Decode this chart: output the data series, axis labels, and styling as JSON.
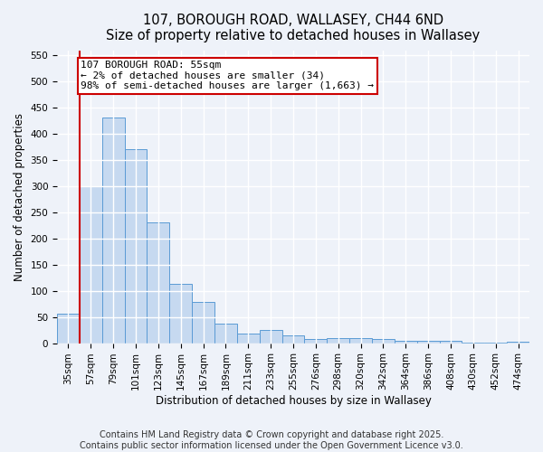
{
  "title_line1": "107, BOROUGH ROAD, WALLASEY, CH44 6ND",
  "title_line2": "Size of property relative to detached houses in Wallasey",
  "xlabel": "Distribution of detached houses by size in Wallasey",
  "ylabel": "Number of detached properties",
  "categories": [
    "35sqm",
    "57sqm",
    "79sqm",
    "101sqm",
    "123sqm",
    "145sqm",
    "167sqm",
    "189sqm",
    "211sqm",
    "233sqm",
    "255sqm",
    "276sqm",
    "298sqm",
    "320sqm",
    "342sqm",
    "364sqm",
    "386sqm",
    "408sqm",
    "430sqm",
    "452sqm",
    "474sqm"
  ],
  "values": [
    57,
    300,
    432,
    370,
    230,
    113,
    78,
    38,
    19,
    26,
    15,
    8,
    10,
    9,
    8,
    4,
    5,
    5,
    1,
    1,
    3
  ],
  "bar_color": "#c6d9f0",
  "bar_edge_color": "#5b9bd5",
  "highlight_line_color": "#cc0000",
  "annotation_line1": "107 BOROUGH ROAD: 55sqm",
  "annotation_line2": "← 2% of detached houses are smaller (34)",
  "annotation_line3": "98% of semi-detached houses are larger (1,663) →",
  "annotation_box_color": "#ffffff",
  "annotation_box_edge_color": "#cc0000",
  "ylim": [
    0,
    560
  ],
  "yticks": [
    0,
    50,
    100,
    150,
    200,
    250,
    300,
    350,
    400,
    450,
    500,
    550
  ],
  "footer_line1": "Contains HM Land Registry data © Crown copyright and database right 2025.",
  "footer_line2": "Contains public sector information licensed under the Open Government Licence v3.0.",
  "bg_color": "#eef2f9",
  "grid_color": "#ffffff",
  "title_fontsize": 10.5,
  "axis_label_fontsize": 8.5,
  "tick_fontsize": 7.5,
  "annotation_fontsize": 8,
  "footer_fontsize": 7
}
